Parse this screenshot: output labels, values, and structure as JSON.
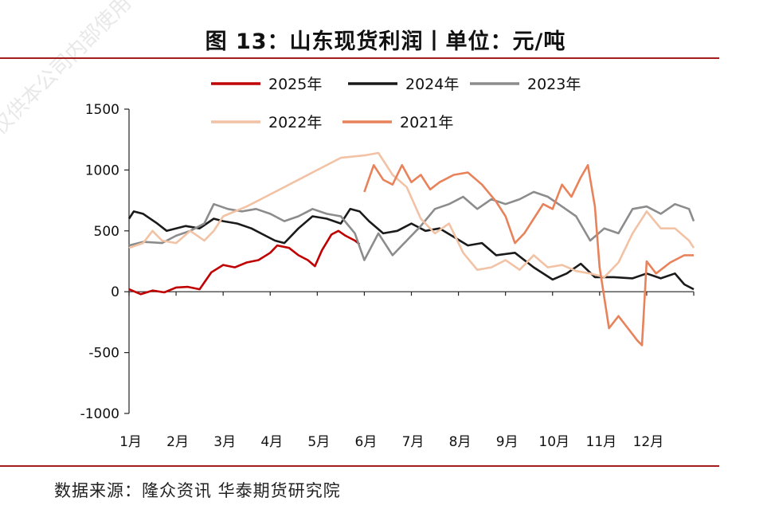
{
  "header": {
    "title": "图 13：山东现货利润丨单位：元/吨"
  },
  "footer": {
    "source": "数据来源：隆众资讯  华泰期货研究院"
  },
  "watermark": "仅供本公司内部使用",
  "colors": {
    "rule": "#a31d1d"
  },
  "chart_data": {
    "type": "line",
    "title": "图 13：山东现货利润丨单位：元/吨",
    "xlabel": "",
    "ylabel": "",
    "ylim": [
      -1000,
      1500
    ],
    "yticks": [
      "1500",
      "1000",
      "500",
      "0",
      "-500",
      "-1000"
    ],
    "xticks": [
      "1月",
      "2月",
      "3月",
      "4月",
      "5月",
      "6月",
      "7月",
      "8月",
      "9月",
      "10月",
      "11月",
      "12月"
    ],
    "x_unit": "month (1 = 1月 start, 13 = year end)",
    "grid": false,
    "legend_position": "top",
    "series": [
      {
        "name": "2025年",
        "color": "#c00000",
        "points": [
          [
            1.0,
            20
          ],
          [
            1.25,
            -20
          ],
          [
            1.5,
            10
          ],
          [
            1.75,
            -5
          ],
          [
            2.0,
            35
          ],
          [
            2.25,
            40
          ],
          [
            2.5,
            20
          ],
          [
            2.75,
            160
          ],
          [
            3.0,
            220
          ],
          [
            3.25,
            200
          ],
          [
            3.5,
            240
          ],
          [
            3.75,
            260
          ],
          [
            4.0,
            320
          ],
          [
            4.15,
            380
          ],
          [
            4.4,
            360
          ],
          [
            4.6,
            300
          ],
          [
            4.8,
            260
          ],
          [
            4.95,
            210
          ],
          [
            5.1,
            340
          ],
          [
            5.3,
            470
          ],
          [
            5.45,
            500
          ],
          [
            5.6,
            460
          ],
          [
            5.8,
            420
          ],
          [
            5.9,
            390
          ]
        ]
      },
      {
        "name": "2024年",
        "color": "#1a1a1a",
        "points": [
          [
            1.0,
            600
          ],
          [
            1.1,
            660
          ],
          [
            1.3,
            640
          ],
          [
            1.6,
            560
          ],
          [
            1.8,
            500
          ],
          [
            2.0,
            520
          ],
          [
            2.2,
            540
          ],
          [
            2.5,
            520
          ],
          [
            2.8,
            600
          ],
          [
            3.0,
            580
          ],
          [
            3.3,
            560
          ],
          [
            3.6,
            520
          ],
          [
            3.9,
            460
          ],
          [
            4.1,
            420
          ],
          [
            4.3,
            400
          ],
          [
            4.6,
            520
          ],
          [
            4.9,
            620
          ],
          [
            5.2,
            600
          ],
          [
            5.5,
            560
          ],
          [
            5.7,
            680
          ],
          [
            5.9,
            660
          ],
          [
            6.1,
            580
          ],
          [
            6.4,
            480
          ],
          [
            6.7,
            500
          ],
          [
            7.0,
            560
          ],
          [
            7.3,
            500
          ],
          [
            7.6,
            520
          ],
          [
            7.9,
            450
          ],
          [
            8.2,
            380
          ],
          [
            8.5,
            400
          ],
          [
            8.8,
            300
          ],
          [
            9.2,
            320
          ],
          [
            9.6,
            200
          ],
          [
            10.0,
            100
          ],
          [
            10.3,
            150
          ],
          [
            10.6,
            230
          ],
          [
            10.9,
            120
          ],
          [
            11.3,
            120
          ],
          [
            11.7,
            110
          ],
          [
            12.0,
            150
          ],
          [
            12.3,
            110
          ],
          [
            12.6,
            150
          ],
          [
            12.8,
            60
          ],
          [
            13.0,
            20
          ]
        ]
      },
      {
        "name": "2023年",
        "color": "#8c8c8c",
        "points": [
          [
            1.0,
            380
          ],
          [
            1.3,
            410
          ],
          [
            1.7,
            400
          ],
          [
            2.0,
            460
          ],
          [
            2.3,
            500
          ],
          [
            2.6,
            560
          ],
          [
            2.8,
            720
          ],
          [
            3.1,
            680
          ],
          [
            3.4,
            660
          ],
          [
            3.7,
            680
          ],
          [
            4.0,
            640
          ],
          [
            4.3,
            580
          ],
          [
            4.6,
            620
          ],
          [
            4.9,
            680
          ],
          [
            5.2,
            640
          ],
          [
            5.5,
            620
          ],
          [
            5.8,
            480
          ],
          [
            6.0,
            260
          ],
          [
            6.3,
            480
          ],
          [
            6.6,
            300
          ],
          [
            6.9,
            420
          ],
          [
            7.2,
            540
          ],
          [
            7.5,
            680
          ],
          [
            7.8,
            720
          ],
          [
            8.1,
            780
          ],
          [
            8.4,
            680
          ],
          [
            8.7,
            760
          ],
          [
            9.0,
            720
          ],
          [
            9.3,
            760
          ],
          [
            9.6,
            820
          ],
          [
            9.9,
            780
          ],
          [
            10.2,
            700
          ],
          [
            10.5,
            620
          ],
          [
            10.8,
            420
          ],
          [
            11.1,
            520
          ],
          [
            11.4,
            480
          ],
          [
            11.7,
            680
          ],
          [
            12.0,
            700
          ],
          [
            12.3,
            640
          ],
          [
            12.6,
            720
          ],
          [
            12.9,
            680
          ],
          [
            13.0,
            580
          ]
        ]
      },
      {
        "name": "2022年",
        "color": "#f2c2a5",
        "points": [
          [
            1.0,
            360
          ],
          [
            1.3,
            400
          ],
          [
            1.5,
            500
          ],
          [
            1.7,
            420
          ],
          [
            2.0,
            400
          ],
          [
            2.3,
            500
          ],
          [
            2.6,
            420
          ],
          [
            2.8,
            500
          ],
          [
            3.0,
            620
          ],
          [
            3.5,
            700
          ],
          [
            4.0,
            800
          ],
          [
            4.5,
            900
          ],
          [
            5.0,
            1000
          ],
          [
            5.5,
            1100
          ],
          [
            6.0,
            1120
          ],
          [
            6.3,
            1140
          ],
          [
            6.6,
            960
          ],
          [
            6.9,
            860
          ],
          [
            7.2,
            600
          ],
          [
            7.5,
            480
          ],
          [
            7.8,
            560
          ],
          [
            8.1,
            320
          ],
          [
            8.4,
            180
          ],
          [
            8.7,
            200
          ],
          [
            9.0,
            260
          ],
          [
            9.3,
            180
          ],
          [
            9.6,
            300
          ],
          [
            9.9,
            200
          ],
          [
            10.2,
            220
          ],
          [
            10.5,
            170
          ],
          [
            10.8,
            150
          ],
          [
            11.1,
            120
          ],
          [
            11.4,
            240
          ],
          [
            11.7,
            480
          ],
          [
            12.0,
            660
          ],
          [
            12.3,
            520
          ],
          [
            12.6,
            520
          ],
          [
            12.9,
            420
          ],
          [
            13.0,
            360
          ]
        ]
      },
      {
        "name": "2021年",
        "color": "#e8825a",
        "points": [
          [
            6.0,
            820
          ],
          [
            6.2,
            1040
          ],
          [
            6.4,
            920
          ],
          [
            6.6,
            880
          ],
          [
            6.8,
            1040
          ],
          [
            7.0,
            900
          ],
          [
            7.2,
            960
          ],
          [
            7.4,
            840
          ],
          [
            7.6,
            900
          ],
          [
            7.9,
            960
          ],
          [
            8.2,
            980
          ],
          [
            8.5,
            880
          ],
          [
            8.8,
            740
          ],
          [
            9.0,
            620
          ],
          [
            9.2,
            400
          ],
          [
            9.4,
            480
          ],
          [
            9.6,
            600
          ],
          [
            9.8,
            720
          ],
          [
            10.0,
            680
          ],
          [
            10.2,
            880
          ],
          [
            10.4,
            780
          ],
          [
            10.6,
            940
          ],
          [
            10.75,
            1040
          ],
          [
            10.9,
            700
          ],
          [
            11.0,
            200
          ],
          [
            11.2,
            -300
          ],
          [
            11.4,
            -200
          ],
          [
            11.6,
            -300
          ],
          [
            11.8,
            -400
          ],
          [
            11.9,
            -440
          ],
          [
            12.0,
            250
          ],
          [
            12.2,
            150
          ],
          [
            12.5,
            240
          ],
          [
            12.8,
            300
          ],
          [
            13.0,
            300
          ]
        ]
      }
    ]
  }
}
